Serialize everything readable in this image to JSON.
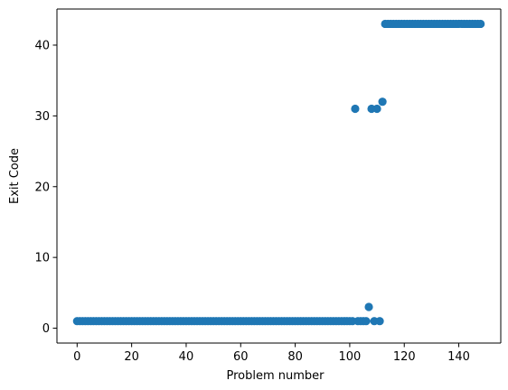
{
  "chart_data": {
    "type": "scatter",
    "title": "",
    "xlabel": "Problem number",
    "ylabel": "Exit Code",
    "xlim": [
      -7.4,
      155.4
    ],
    "ylim": [
      -2.1,
      45.1
    ],
    "xticks": [
      0,
      20,
      40,
      60,
      80,
      100,
      120,
      140
    ],
    "yticks": [
      0,
      10,
      20,
      30,
      40
    ],
    "grid": false,
    "legend": "none",
    "marker_color": "#1f77b4",
    "series": [
      {
        "points": [
          [
            0,
            1
          ],
          [
            1,
            1
          ],
          [
            2,
            1
          ],
          [
            3,
            1
          ],
          [
            4,
            1
          ],
          [
            5,
            1
          ],
          [
            6,
            1
          ],
          [
            7,
            1
          ],
          [
            8,
            1
          ],
          [
            9,
            1
          ],
          [
            10,
            1
          ],
          [
            11,
            1
          ],
          [
            12,
            1
          ],
          [
            13,
            1
          ],
          [
            14,
            1
          ],
          [
            15,
            1
          ],
          [
            16,
            1
          ],
          [
            17,
            1
          ],
          [
            18,
            1
          ],
          [
            19,
            1
          ],
          [
            20,
            1
          ],
          [
            21,
            1
          ],
          [
            22,
            1
          ],
          [
            23,
            1
          ],
          [
            24,
            1
          ],
          [
            25,
            1
          ],
          [
            26,
            1
          ],
          [
            27,
            1
          ],
          [
            28,
            1
          ],
          [
            29,
            1
          ],
          [
            30,
            1
          ],
          [
            31,
            1
          ],
          [
            32,
            1
          ],
          [
            33,
            1
          ],
          [
            34,
            1
          ],
          [
            35,
            1
          ],
          [
            36,
            1
          ],
          [
            37,
            1
          ],
          [
            38,
            1
          ],
          [
            39,
            1
          ],
          [
            40,
            1
          ],
          [
            41,
            1
          ],
          [
            42,
            1
          ],
          [
            43,
            1
          ],
          [
            44,
            1
          ],
          [
            45,
            1
          ],
          [
            46,
            1
          ],
          [
            47,
            1
          ],
          [
            48,
            1
          ],
          [
            49,
            1
          ],
          [
            50,
            1
          ],
          [
            51,
            1
          ],
          [
            52,
            1
          ],
          [
            53,
            1
          ],
          [
            54,
            1
          ],
          [
            55,
            1
          ],
          [
            56,
            1
          ],
          [
            57,
            1
          ],
          [
            58,
            1
          ],
          [
            59,
            1
          ],
          [
            60,
            1
          ],
          [
            61,
            1
          ],
          [
            62,
            1
          ],
          [
            63,
            1
          ],
          [
            64,
            1
          ],
          [
            65,
            1
          ],
          [
            66,
            1
          ],
          [
            67,
            1
          ],
          [
            68,
            1
          ],
          [
            69,
            1
          ],
          [
            70,
            1
          ],
          [
            71,
            1
          ],
          [
            72,
            1
          ],
          [
            73,
            1
          ],
          [
            74,
            1
          ],
          [
            75,
            1
          ],
          [
            76,
            1
          ],
          [
            77,
            1
          ],
          [
            78,
            1
          ],
          [
            79,
            1
          ],
          [
            80,
            1
          ],
          [
            81,
            1
          ],
          [
            82,
            1
          ],
          [
            83,
            1
          ],
          [
            84,
            1
          ],
          [
            85,
            1
          ],
          [
            86,
            1
          ],
          [
            87,
            1
          ],
          [
            88,
            1
          ],
          [
            89,
            1
          ],
          [
            90,
            1
          ],
          [
            91,
            1
          ],
          [
            92,
            1
          ],
          [
            93,
            1
          ],
          [
            94,
            1
          ],
          [
            95,
            1
          ],
          [
            96,
            1
          ],
          [
            97,
            1
          ],
          [
            98,
            1
          ],
          [
            99,
            1
          ],
          [
            100,
            1
          ],
          [
            101,
            1
          ],
          [
            102,
            31
          ],
          [
            103,
            1
          ],
          [
            104,
            1
          ],
          [
            105,
            1
          ],
          [
            106,
            1
          ],
          [
            107,
            3
          ],
          [
            108,
            31
          ],
          [
            109,
            1
          ],
          [
            110,
            31
          ],
          [
            111,
            1
          ],
          [
            112,
            32
          ],
          [
            113,
            43
          ],
          [
            114,
            43
          ],
          [
            115,
            43
          ],
          [
            116,
            43
          ],
          [
            117,
            43
          ],
          [
            118,
            43
          ],
          [
            119,
            43
          ],
          [
            120,
            43
          ],
          [
            121,
            43
          ],
          [
            122,
            43
          ],
          [
            123,
            43
          ],
          [
            124,
            43
          ],
          [
            125,
            43
          ],
          [
            126,
            43
          ],
          [
            127,
            43
          ],
          [
            128,
            43
          ],
          [
            129,
            43
          ],
          [
            130,
            43
          ],
          [
            131,
            43
          ],
          [
            132,
            43
          ],
          [
            133,
            43
          ],
          [
            134,
            43
          ],
          [
            135,
            43
          ],
          [
            136,
            43
          ],
          [
            137,
            43
          ],
          [
            138,
            43
          ],
          [
            139,
            43
          ],
          [
            140,
            43
          ],
          [
            141,
            43
          ],
          [
            142,
            43
          ],
          [
            143,
            43
          ],
          [
            144,
            43
          ],
          [
            145,
            43
          ],
          [
            146,
            43
          ],
          [
            147,
            43
          ],
          [
            148,
            43
          ]
        ]
      }
    ]
  }
}
